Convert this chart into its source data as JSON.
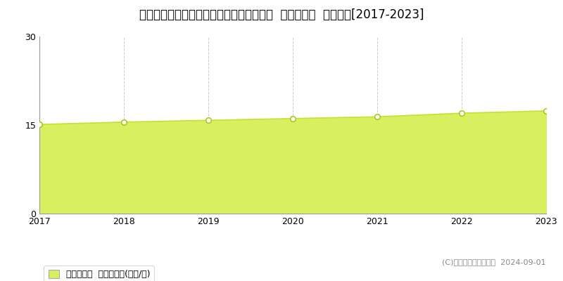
{
  "title": "埼玉県比企郡川島町かわじま２丁目２２番  基準地価格  地価推移[2017-2023]",
  "years": [
    2017,
    2018,
    2019,
    2020,
    2021,
    2022,
    2023
  ],
  "values": [
    15.1,
    15.5,
    15.8,
    16.1,
    16.4,
    17.0,
    17.4
  ],
  "ylim": [
    0,
    30
  ],
  "yticks": [
    0,
    15,
    30
  ],
  "line_color": "#c8e030",
  "fill_color": "#d8f060",
  "fill_alpha": 1.0,
  "marker_facecolor": "white",
  "marker_edge_color": "#aac820",
  "grid_color": "#cccccc",
  "background_color": "#ffffff",
  "legend_label": "基準地価格  平均坪単価(万円/坪)",
  "copyright_text": "(C)土地価格ドットコム  2024-09-01",
  "title_fontsize": 12,
  "axis_fontsize": 9,
  "legend_fontsize": 9
}
